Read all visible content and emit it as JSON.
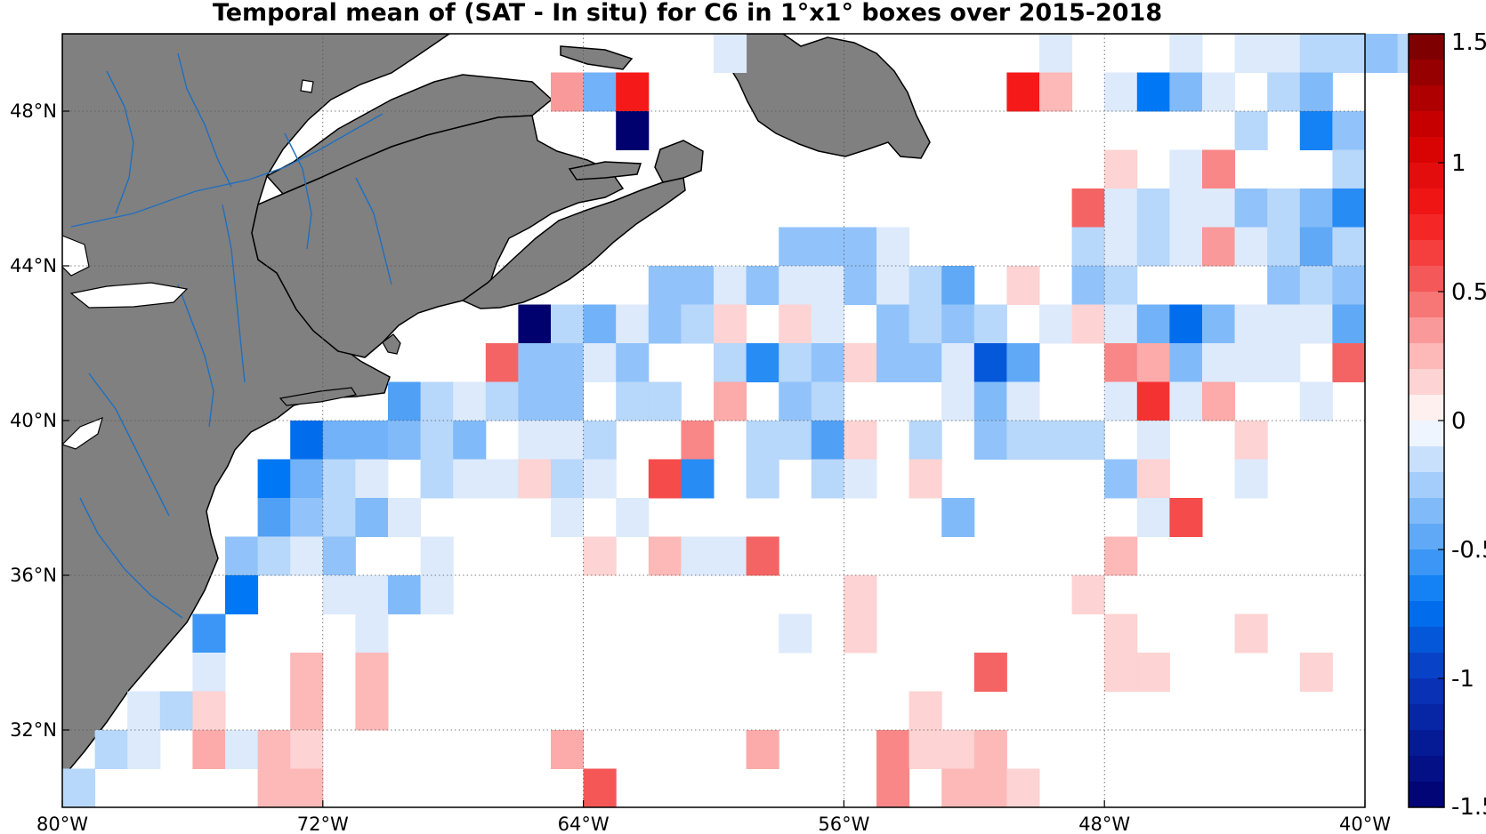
{
  "title": "Temporal mean of (SAT - In situ) for C6 in 1°x1° boxes over 2015-2018",
  "map": {
    "projection": "equirectangular",
    "lon_range": [
      -80,
      -40
    ],
    "lat_range": [
      30,
      50
    ],
    "land_color": "#808080",
    "coast_color": "#000000",
    "river_color": "#1f6fbf",
    "grid": true,
    "lon_ticks": [
      {
        "value": -80,
        "label": "80°W"
      },
      {
        "value": -72,
        "label": "72°W"
      },
      {
        "value": -64,
        "label": "64°W"
      },
      {
        "value": -56,
        "label": "56°W"
      },
      {
        "value": -48,
        "label": "48°W"
      },
      {
        "value": -40,
        "label": "40°W"
      }
    ],
    "lat_ticks": [
      {
        "value": 32,
        "label": "32°N"
      },
      {
        "value": 36,
        "label": "36°N"
      },
      {
        "value": 40,
        "label": "40°N"
      },
      {
        "value": 44,
        "label": "44°N"
      },
      {
        "value": 48,
        "label": "48°N"
      }
    ]
  },
  "colorbar": {
    "range": [
      -1.5,
      1.5
    ],
    "levels": 30,
    "ticks": [
      "1.5",
      "1",
      "0.5",
      "0",
      "-0.5",
      "-1",
      "-1.5"
    ],
    "tick_values": [
      1.5,
      1,
      0.5,
      0,
      -0.5,
      -1,
      -1.5
    ]
  },
  "chart_data": {
    "type": "heatmap",
    "title": "Temporal mean of (SAT - In situ) for C6 in 1°x1° boxes over 2015-2018",
    "cell_size_deg": 1,
    "cells": [
      [
        -60,
        50,
        -0.1
      ],
      [
        -50,
        50,
        -0.1
      ],
      [
        -46,
        50,
        -0.1
      ],
      [
        -44,
        50,
        -0.1
      ],
      [
        -43,
        50,
        -0.1
      ],
      [
        -42,
        50,
        -0.2
      ],
      [
        -41,
        50,
        -0.2
      ],
      [
        -40,
        50,
        -0.3
      ],
      [
        -39,
        50,
        -0.2
      ],
      [
        -65,
        49,
        0.35
      ],
      [
        -64,
        49,
        -0.4
      ],
      [
        -63,
        49,
        0.8
      ],
      [
        -51,
        49,
        0.8
      ],
      [
        -50,
        49,
        0.25
      ],
      [
        -48,
        49,
        -0.1
      ],
      [
        -47,
        49,
        -0.7
      ],
      [
        -46,
        49,
        -0.35
      ],
      [
        -45,
        49,
        -0.1
      ],
      [
        -43,
        49,
        -0.2
      ],
      [
        -42,
        49,
        -0.35
      ],
      [
        -63,
        48,
        -1.5
      ],
      [
        -44,
        48,
        -0.2
      ],
      [
        -42,
        48,
        -0.65
      ],
      [
        -41,
        48,
        -0.3
      ],
      [
        -48,
        47,
        0.15
      ],
      [
        -46,
        47,
        -0.1
      ],
      [
        -45,
        47,
        0.4
      ],
      [
        -41,
        47,
        -0.2
      ],
      [
        -49,
        46,
        0.5
      ],
      [
        -48,
        46,
        -0.1
      ],
      [
        -47,
        46,
        -0.2
      ],
      [
        -46,
        46,
        -0.1
      ],
      [
        -45,
        46,
        -0.1
      ],
      [
        -44,
        46,
        -0.3
      ],
      [
        -43,
        46,
        -0.2
      ],
      [
        -42,
        46,
        -0.35
      ],
      [
        -41,
        46,
        -0.6
      ],
      [
        -58,
        45,
        -0.3
      ],
      [
        -57,
        45,
        -0.3
      ],
      [
        -56,
        45,
        -0.3
      ],
      [
        -55,
        45,
        -0.1
      ],
      [
        -49,
        45,
        -0.2
      ],
      [
        -48,
        45,
        -0.1
      ],
      [
        -47,
        45,
        -0.2
      ],
      [
        -46,
        45,
        -0.1
      ],
      [
        -45,
        45,
        0.35
      ],
      [
        -44,
        45,
        -0.1
      ],
      [
        -43,
        45,
        -0.2
      ],
      [
        -42,
        45,
        -0.45
      ],
      [
        -41,
        45,
        -0.2
      ],
      [
        -62,
        44,
        -0.3
      ],
      [
        -61,
        44,
        -0.3
      ],
      [
        -60,
        44,
        -0.1
      ],
      [
        -59,
        44,
        -0.3
      ],
      [
        -58,
        44,
        -0.1
      ],
      [
        -57,
        44,
        -0.1
      ],
      [
        -56,
        44,
        -0.3
      ],
      [
        -55,
        44,
        -0.1
      ],
      [
        -54,
        44,
        -0.2
      ],
      [
        -53,
        44,
        -0.45
      ],
      [
        -51,
        44,
        0.15
      ],
      [
        -49,
        44,
        -0.3
      ],
      [
        -48,
        44,
        -0.2
      ],
      [
        -43,
        44,
        -0.3
      ],
      [
        -42,
        44,
        -0.2
      ],
      [
        -41,
        44,
        -0.3
      ],
      [
        -66,
        43,
        -1.5
      ],
      [
        -65,
        43,
        -0.2
      ],
      [
        -64,
        43,
        -0.4
      ],
      [
        -63,
        43,
        -0.1
      ],
      [
        -62,
        43,
        -0.3
      ],
      [
        -61,
        43,
        -0.2
      ],
      [
        -60,
        43,
        0.15
      ],
      [
        -58,
        43,
        0.15
      ],
      [
        -57,
        43,
        -0.1
      ],
      [
        -55,
        43,
        -0.3
      ],
      [
        -54,
        43,
        -0.2
      ],
      [
        -53,
        43,
        -0.3
      ],
      [
        -52,
        43,
        -0.2
      ],
      [
        -50,
        43,
        -0.1
      ],
      [
        -49,
        43,
        0.15
      ],
      [
        -48,
        43,
        -0.1
      ],
      [
        -47,
        43,
        -0.4
      ],
      [
        -46,
        43,
        -0.75
      ],
      [
        -45,
        43,
        -0.35
      ],
      [
        -44,
        43,
        -0.1
      ],
      [
        -43,
        43,
        -0.1
      ],
      [
        -42,
        43,
        -0.1
      ],
      [
        -41,
        43,
        -0.45
      ],
      [
        -67,
        42,
        0.5
      ],
      [
        -66,
        42,
        -0.3
      ],
      [
        -65,
        42,
        -0.3
      ],
      [
        -64,
        42,
        -0.1
      ],
      [
        -63,
        42,
        -0.3
      ],
      [
        -60,
        42,
        -0.2
      ],
      [
        -59,
        42,
        -0.6
      ],
      [
        -58,
        42,
        -0.2
      ],
      [
        -57,
        42,
        -0.3
      ],
      [
        -56,
        42,
        0.15
      ],
      [
        -55,
        42,
        -0.3
      ],
      [
        -54,
        42,
        -0.3
      ],
      [
        -53,
        42,
        -0.1
      ],
      [
        -52,
        42,
        -0.85
      ],
      [
        -51,
        42,
        -0.45
      ],
      [
        -48,
        42,
        0.4
      ],
      [
        -47,
        42,
        0.3
      ],
      [
        -46,
        42,
        -0.35
      ],
      [
        -45,
        42,
        -0.1
      ],
      [
        -44,
        42,
        -0.1
      ],
      [
        -43,
        42,
        -0.1
      ],
      [
        -41,
        42,
        0.5
      ],
      [
        -70,
        41,
        -0.5
      ],
      [
        -69,
        41,
        -0.2
      ],
      [
        -68,
        41,
        -0.1
      ],
      [
        -67,
        41,
        -0.2
      ],
      [
        -66,
        41,
        -0.3
      ],
      [
        -65,
        41,
        -0.3
      ],
      [
        -63,
        41,
        -0.2
      ],
      [
        -62,
        41,
        -0.2
      ],
      [
        -60,
        41,
        0.3
      ],
      [
        -58,
        41,
        -0.3
      ],
      [
        -57,
        41,
        -0.2
      ],
      [
        -53,
        41,
        -0.1
      ],
      [
        -52,
        41,
        -0.35
      ],
      [
        -51,
        41,
        -0.1
      ],
      [
        -48,
        41,
        -0.1
      ],
      [
        -47,
        41,
        0.7
      ],
      [
        -46,
        41,
        -0.1
      ],
      [
        -45,
        41,
        0.3
      ],
      [
        -42,
        41,
        -0.1
      ],
      [
        -73,
        40,
        -0.75
      ],
      [
        -72,
        40,
        -0.4
      ],
      [
        -71,
        40,
        -0.4
      ],
      [
        -70,
        40,
        -0.35
      ],
      [
        -69,
        40,
        -0.2
      ],
      [
        -68,
        40,
        -0.35
      ],
      [
        -66,
        40,
        -0.1
      ],
      [
        -65,
        40,
        -0.1
      ],
      [
        -64,
        40,
        -0.2
      ],
      [
        -61,
        40,
        0.4
      ],
      [
        -59,
        40,
        -0.2
      ],
      [
        -58,
        40,
        -0.2
      ],
      [
        -57,
        40,
        -0.5
      ],
      [
        -56,
        40,
        0.15
      ],
      [
        -54,
        40,
        -0.2
      ],
      [
        -52,
        40,
        -0.3
      ],
      [
        -51,
        40,
        -0.2
      ],
      [
        -50,
        40,
        -0.2
      ],
      [
        -49,
        40,
        -0.2
      ],
      [
        -47,
        40,
        -0.1
      ],
      [
        -44,
        40,
        0.15
      ],
      [
        -74,
        39,
        -0.7
      ],
      [
        -73,
        39,
        -0.4
      ],
      [
        -72,
        39,
        -0.2
      ],
      [
        -71,
        39,
        -0.1
      ],
      [
        -69,
        39,
        -0.2
      ],
      [
        -68,
        39,
        -0.1
      ],
      [
        -67,
        39,
        -0.1
      ],
      [
        -66,
        39,
        0.15
      ],
      [
        -65,
        39,
        -0.2
      ],
      [
        -64,
        39,
        -0.1
      ],
      [
        -62,
        39,
        0.6
      ],
      [
        -61,
        39,
        -0.6
      ],
      [
        -59,
        39,
        -0.2
      ],
      [
        -57,
        39,
        -0.2
      ],
      [
        -56,
        39,
        -0.1
      ],
      [
        -54,
        39,
        0.15
      ],
      [
        -48,
        39,
        -0.3
      ],
      [
        -47,
        39,
        0.15
      ],
      [
        -44,
        39,
        -0.1
      ],
      [
        -74,
        38,
        -0.5
      ],
      [
        -73,
        38,
        -0.3
      ],
      [
        -72,
        38,
        -0.2
      ],
      [
        -71,
        38,
        -0.35
      ],
      [
        -70,
        38,
        -0.1
      ],
      [
        -65,
        38,
        -0.1
      ],
      [
        -63,
        38,
        -0.1
      ],
      [
        -53,
        38,
        -0.35
      ],
      [
        -47,
        38,
        -0.1
      ],
      [
        -46,
        38,
        0.6
      ],
      [
        -75,
        37,
        -0.3
      ],
      [
        -74,
        37,
        -0.2
      ],
      [
        -73,
        37,
        -0.1
      ],
      [
        -72,
        37,
        -0.3
      ],
      [
        -69,
        37,
        -0.1
      ],
      [
        -64,
        37,
        0.15
      ],
      [
        -62,
        37,
        0.25
      ],
      [
        -61,
        37,
        -0.1
      ],
      [
        -60,
        37,
        -0.1
      ],
      [
        -59,
        37,
        0.5
      ],
      [
        -48,
        37,
        0.25
      ],
      [
        -75,
        36,
        -0.7
      ],
      [
        -72,
        36,
        -0.1
      ],
      [
        -71,
        36,
        -0.1
      ],
      [
        -70,
        36,
        -0.35
      ],
      [
        -69,
        36,
        -0.1
      ],
      [
        -56,
        36,
        0.15
      ],
      [
        -49,
        36,
        0.15
      ],
      [
        -76,
        35,
        -0.55
      ],
      [
        -71,
        35,
        -0.1
      ],
      [
        -58,
        35,
        -0.1
      ],
      [
        -56,
        35,
        0.15
      ],
      [
        -48,
        35,
        0.15
      ],
      [
        -44,
        35,
        0.15
      ],
      [
        -76,
        34,
        -0.1
      ],
      [
        -73,
        34,
        0.25
      ],
      [
        -71,
        34,
        0.25
      ],
      [
        -52,
        34,
        0.5
      ],
      [
        -48,
        34,
        0.15
      ],
      [
        -47,
        34,
        0.15
      ],
      [
        -42,
        34,
        0.15
      ],
      [
        -78,
        33,
        -0.1
      ],
      [
        -77,
        33,
        -0.2
      ],
      [
        -76,
        33,
        0.15
      ],
      [
        -73,
        33,
        0.25
      ],
      [
        -71,
        33,
        0.25
      ],
      [
        -54,
        33,
        0.15
      ],
      [
        -79,
        32,
        -0.2
      ],
      [
        -78,
        32,
        -0.1
      ],
      [
        -76,
        32,
        0.3
      ],
      [
        -75,
        32,
        -0.1
      ],
      [
        -74,
        32,
        0.25
      ],
      [
        -73,
        32,
        0.15
      ],
      [
        -65,
        32,
        0.3
      ],
      [
        -59,
        32,
        0.3
      ],
      [
        -55,
        32,
        0.4
      ],
      [
        -54,
        32,
        0.15
      ],
      [
        -53,
        32,
        0.15
      ],
      [
        -52,
        32,
        0.25
      ],
      [
        -80,
        31,
        -0.2
      ],
      [
        -74,
        31,
        0.25
      ],
      [
        -73,
        31,
        0.25
      ],
      [
        -64,
        31,
        0.55
      ],
      [
        -55,
        31,
        0.4
      ],
      [
        -53,
        31,
        0.25
      ],
      [
        -52,
        31,
        0.25
      ],
      [
        -51,
        31,
        0.15
      ]
    ]
  }
}
